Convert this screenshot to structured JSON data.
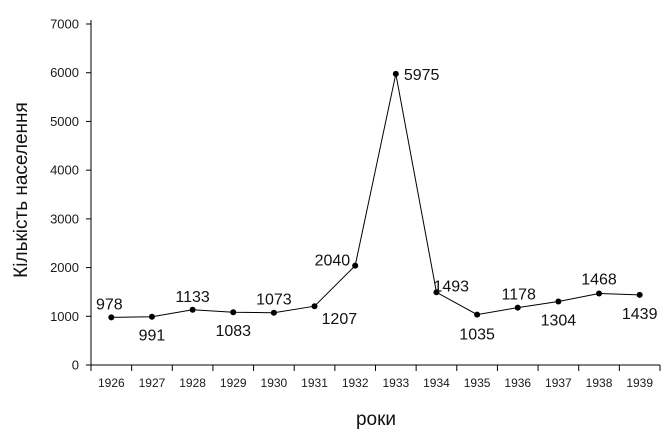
{
  "chart_data": {
    "type": "line",
    "title": "",
    "xlabel": "роки",
    "ylabel": "Кількість населення",
    "categories": [
      "1926",
      "1927",
      "1928",
      "1929",
      "1930",
      "1931",
      "1932",
      "1933",
      "1934",
      "1935",
      "1936",
      "1937",
      "1938",
      "1939"
    ],
    "values": [
      978,
      991,
      1133,
      1083,
      1073,
      1207,
      2040,
      5975,
      1493,
      1035,
      1178,
      1304,
      1468,
      1439
    ],
    "data_labels": [
      "978",
      "991",
      "1133",
      "1083",
      "1073",
      "1207",
      "2040",
      "5975",
      "1493",
      "1035",
      "1178",
      "1304",
      "1468",
      "1439"
    ],
    "yticks": [
      "0",
      "1000",
      "2000",
      "3000",
      "4000",
      "5000",
      "6000",
      "7000"
    ],
    "ylim": [
      0,
      7000
    ],
    "grid": false,
    "legend": "none",
    "line_color": "#000000",
    "marker_color": "#000000"
  }
}
